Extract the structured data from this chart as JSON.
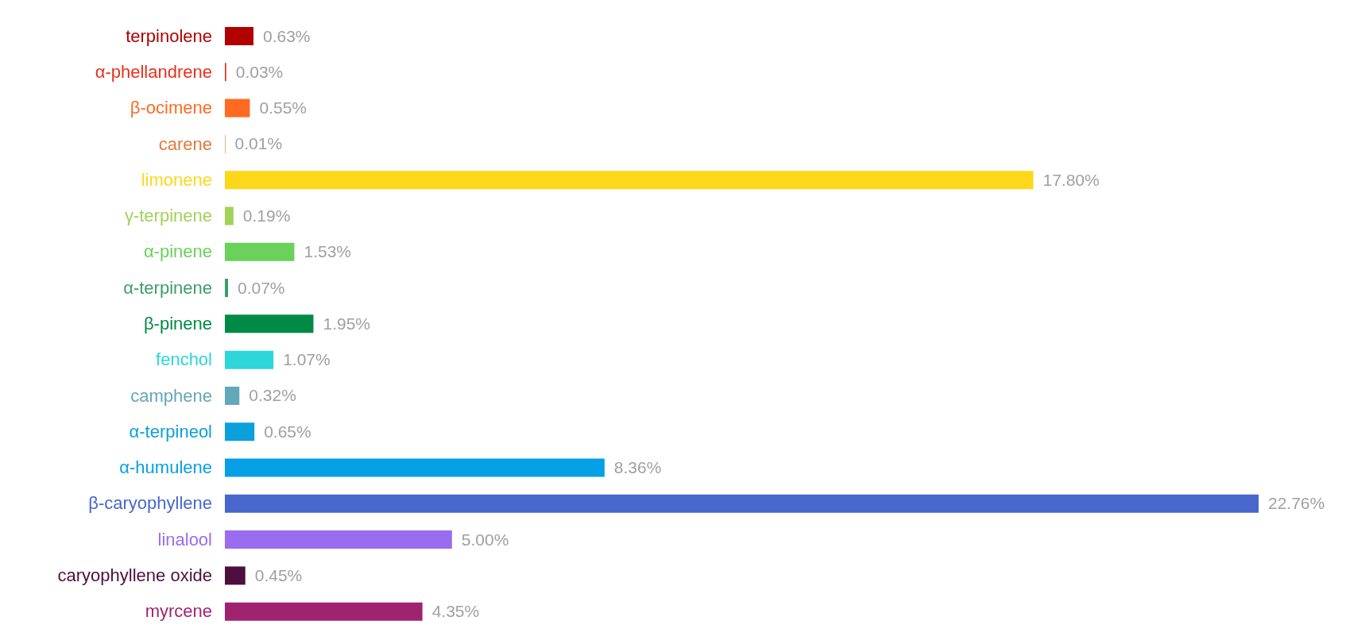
{
  "chart_data": {
    "type": "bar",
    "orientation": "horizontal",
    "categories": [
      "terpinolene",
      "α-phellandrene",
      "β-ocimene",
      "carene",
      "limonene",
      "γ-terpinene",
      "α-pinene",
      "α-terpinene",
      "β-pinene",
      "fenchol",
      "camphene",
      "α-terpineol",
      "α-humulene",
      "β-caryophyllene",
      "linalool",
      "caryophyllene oxide",
      "myrcene"
    ],
    "values": [
      0.63,
      0.03,
      0.55,
      0.01,
      17.8,
      0.19,
      1.53,
      0.07,
      1.95,
      1.07,
      0.32,
      0.65,
      8.36,
      22.76,
      5.0,
      0.45,
      4.35
    ],
    "value_labels": [
      "0.63%",
      "0.03%",
      "0.55%",
      "0.01%",
      "17.80%",
      "0.19%",
      "1.53%",
      "0.07%",
      "1.95%",
      "1.07%",
      "0.32%",
      "0.65%",
      "8.36%",
      "22.76%",
      "5.00%",
      "0.45%",
      "4.35%"
    ],
    "colors": [
      "#b00000",
      "#e8301c",
      "#ff6a21",
      "#e07a3a",
      "#fdd81a",
      "#a3d15a",
      "#6ad15a",
      "#3a9e6a",
      "#008a45",
      "#2dd6d9",
      "#62a8b8",
      "#0aa0dc",
      "#06a0e6",
      "#4767cc",
      "#9a6cf0",
      "#4d0f3d",
      "#a02370"
    ],
    "grid": false,
    "legend": false
  }
}
